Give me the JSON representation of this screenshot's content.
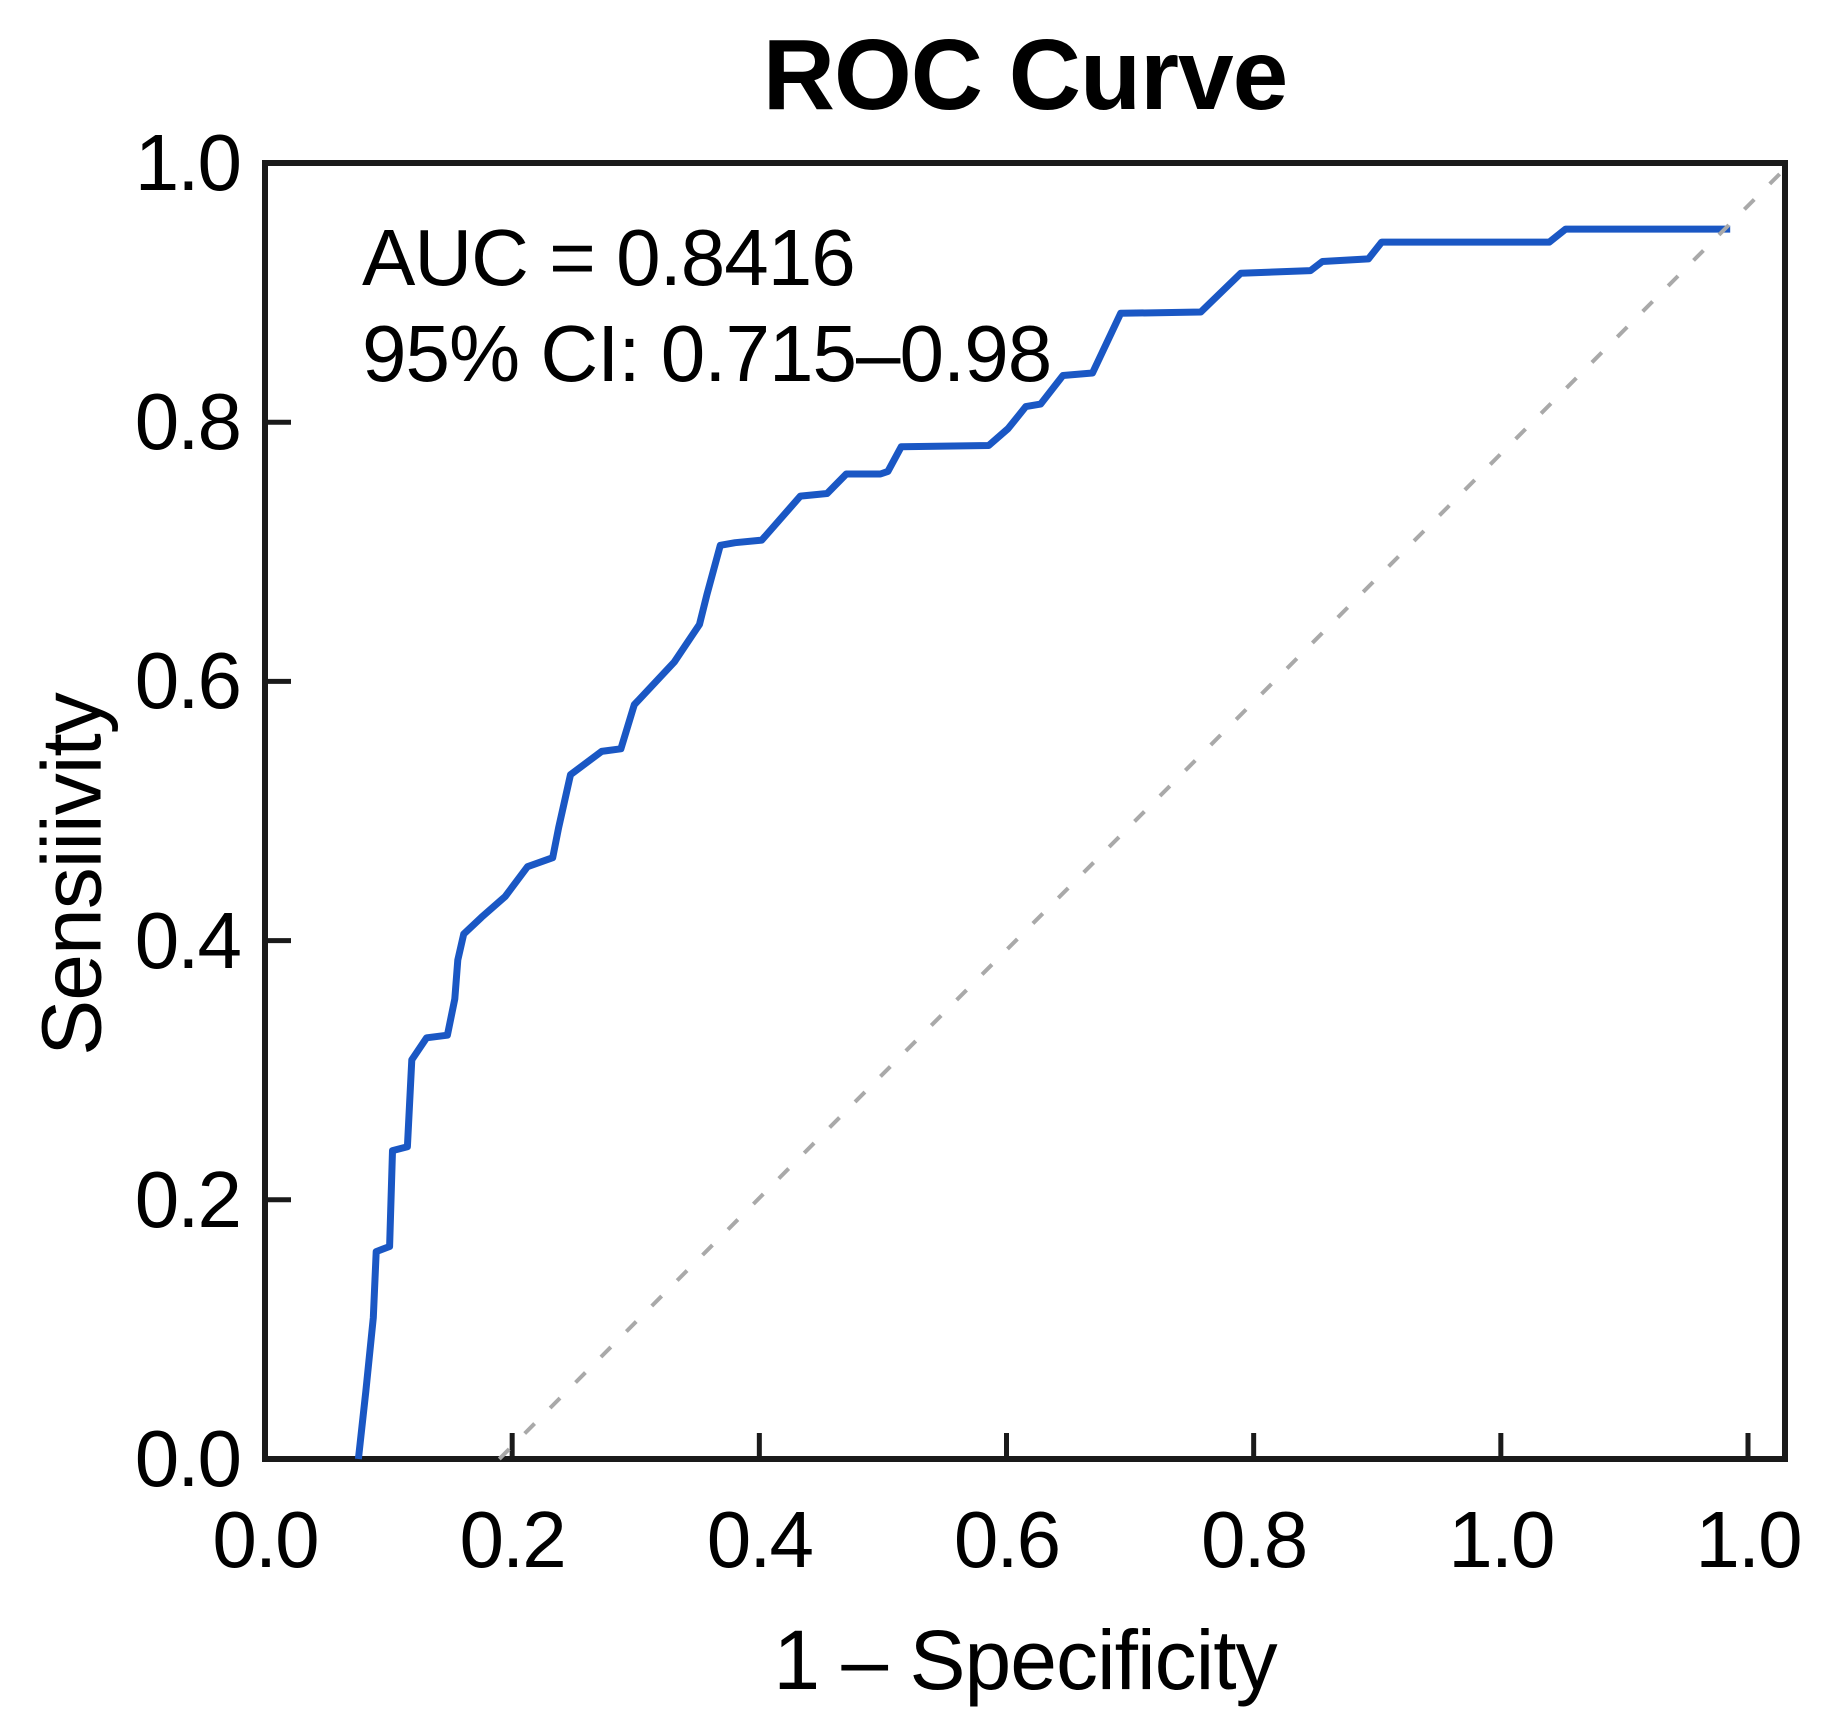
{
  "figure": {
    "title": "ROC Curve"
  },
  "annotation": {
    "line1": "AUC = 0.8416",
    "line2": "95% CI: 0.715–0.98"
  },
  "axes": {
    "x_label": "1 – Specificity",
    "y_label": "Sensiiivity",
    "x_ticks": [
      "0.0",
      "0.2",
      "0.4",
      "0.6",
      "0.8",
      "1.0",
      "1.0"
    ],
    "y_ticks": [
      "1.0",
      "0.8",
      "0.6",
      "0.4",
      "0.2",
      "0.0"
    ]
  },
  "colors": {
    "curve": "#1a57c4",
    "diagonal": "#a9a9a9",
    "axis": "#1a1a1a",
    "text": "#000000",
    "background": "#ffffff"
  },
  "chart_data": {
    "type": "line",
    "title": "ROC Curve",
    "xlabel": "1 – Specificity",
    "ylabel": "Sensiiivity",
    "auc": 0.8416,
    "ci_95": "0.715–0.98",
    "grid": false,
    "legend": "none",
    "ylim": [
      0,
      1
    ],
    "x_tick_labels": [
      "0.0",
      "0.2",
      "0.4",
      "0.6",
      "0.8",
      "1.0",
      "1.0"
    ],
    "y_tick_labels": [
      "0.0",
      "0.2",
      "0.4",
      "0.6",
      "0.8",
      "1.0"
    ],
    "x_note": "x values below are fractions of the full axis span; the last two x tick labels in the source figure both read 1.0",
    "annotations": [
      "AUC = 0.8416",
      "95% CI: 0.715–0.98"
    ],
    "series": [
      {
        "name": "ROC curve",
        "style": "solid",
        "color": "#1a57c4",
        "points": [
          [
            0.063,
            0.0
          ],
          [
            0.068,
            0.052
          ],
          [
            0.073,
            0.109
          ],
          [
            0.075,
            0.16
          ],
          [
            0.084,
            0.164
          ],
          [
            0.086,
            0.238
          ],
          [
            0.096,
            0.241
          ],
          [
            0.099,
            0.308
          ],
          [
            0.109,
            0.325
          ],
          [
            0.123,
            0.327
          ],
          [
            0.128,
            0.355
          ],
          [
            0.13,
            0.385
          ],
          [
            0.134,
            0.405
          ],
          [
            0.146,
            0.418
          ],
          [
            0.162,
            0.434
          ],
          [
            0.177,
            0.457
          ],
          [
            0.194,
            0.464
          ],
          [
            0.198,
            0.487
          ],
          [
            0.206,
            0.528
          ],
          [
            0.227,
            0.546
          ],
          [
            0.24,
            0.548
          ],
          [
            0.249,
            0.582
          ],
          [
            0.276,
            0.615
          ],
          [
            0.293,
            0.644
          ],
          [
            0.298,
            0.667
          ],
          [
            0.307,
            0.705
          ],
          [
            0.317,
            0.707
          ],
          [
            0.335,
            0.709
          ],
          [
            0.361,
            0.743
          ],
          [
            0.379,
            0.745
          ],
          [
            0.392,
            0.76
          ],
          [
            0.415,
            0.76
          ],
          [
            0.42,
            0.762
          ],
          [
            0.429,
            0.781
          ],
          [
            0.488,
            0.782
          ],
          [
            0.501,
            0.795
          ],
          [
            0.513,
            0.812
          ],
          [
            0.523,
            0.814
          ],
          [
            0.538,
            0.836
          ],
          [
            0.558,
            0.838
          ],
          [
            0.577,
            0.884
          ],
          [
            0.631,
            0.885
          ],
          [
            0.658,
            0.915
          ],
          [
            0.705,
            0.917
          ],
          [
            0.713,
            0.924
          ],
          [
            0.744,
            0.926
          ],
          [
            0.753,
            0.939
          ],
          [
            0.866,
            0.939
          ],
          [
            0.877,
            0.949
          ],
          [
            0.988,
            0.949
          ]
        ]
      },
      {
        "name": "chance diagonal",
        "style": "dashed",
        "color": "#a9a9a9",
        "points": [
          [
            0.158,
            0.0
          ],
          [
            1.027,
            0.998
          ]
        ]
      }
    ]
  }
}
